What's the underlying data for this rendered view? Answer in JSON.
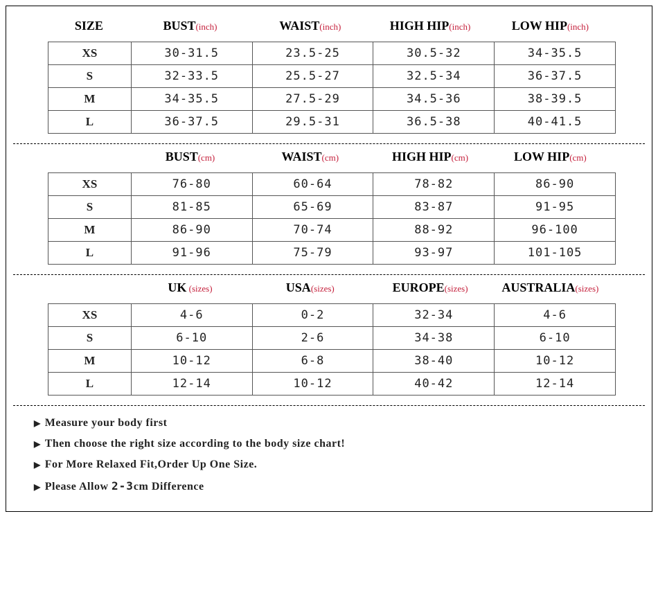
{
  "colors": {
    "unit": "#c41e3a",
    "border": "#555555",
    "text": "#222222",
    "background": "#ffffff"
  },
  "typography": {
    "header_fontsize": 18,
    "data_fontsize": 17,
    "unit_fontsize": 13,
    "note_fontsize": 16
  },
  "sections": [
    {
      "show_size_header": true,
      "size_header": "SIZE",
      "columns": [
        {
          "label": "BUST",
          "unit": "(inch)"
        },
        {
          "label": "WAIST",
          "unit": "(inch)"
        },
        {
          "label": "HIGH HIP",
          "unit": "(inch)"
        },
        {
          "label": "LOW HIP",
          "unit": "(inch)"
        }
      ],
      "rows": [
        {
          "size": "XS",
          "vals": [
            "30-31.5",
            "23.5-25",
            "30.5-32",
            "34-35.5"
          ]
        },
        {
          "size": "S",
          "vals": [
            "32-33.5",
            "25.5-27",
            "32.5-34",
            "36-37.5"
          ]
        },
        {
          "size": "M",
          "vals": [
            "34-35.5",
            "27.5-29",
            "34.5-36",
            "38-39.5"
          ]
        },
        {
          "size": "L",
          "vals": [
            "36-37.5",
            "29.5-31",
            "36.5-38",
            "40-41.5"
          ]
        }
      ]
    },
    {
      "show_size_header": false,
      "columns": [
        {
          "label": "BUST",
          "unit": "(cm)"
        },
        {
          "label": "WAIST",
          "unit": "(cm)"
        },
        {
          "label": "HIGH HIP",
          "unit": "(cm)"
        },
        {
          "label": "LOW HIP",
          "unit": "(cm)"
        }
      ],
      "rows": [
        {
          "size": "XS",
          "vals": [
            "76-80",
            "60-64",
            "78-82",
            "86-90"
          ]
        },
        {
          "size": "S",
          "vals": [
            "81-85",
            "65-69",
            "83-87",
            "91-95"
          ]
        },
        {
          "size": "M",
          "vals": [
            "86-90",
            "70-74",
            "88-92",
            "96-100"
          ]
        },
        {
          "size": "L",
          "vals": [
            "91-96",
            "75-79",
            "93-97",
            "101-105"
          ]
        }
      ]
    },
    {
      "show_size_header": false,
      "columns": [
        {
          "label": "UK",
          "unit": " (sizes)"
        },
        {
          "label": "USA",
          "unit": "(sizes)"
        },
        {
          "label": "EUROPE",
          "unit": "(sizes)"
        },
        {
          "label": "AUSTRALIA",
          "unit": "(sizes)"
        }
      ],
      "rows": [
        {
          "size": "XS",
          "vals": [
            "4-6",
            "0-2",
            "32-34",
            "4-6"
          ]
        },
        {
          "size": "S",
          "vals": [
            "6-10",
            "2-6",
            "34-38",
            "6-10"
          ]
        },
        {
          "size": "M",
          "vals": [
            "10-12",
            "6-8",
            "38-40",
            "10-12"
          ]
        },
        {
          "size": "L",
          "vals": [
            "12-14",
            "10-12",
            "40-42",
            "12-14"
          ]
        }
      ]
    }
  ],
  "notes": [
    {
      "pre": "Measure your body first",
      "mono": "",
      "post": ""
    },
    {
      "pre": "Then choose the right size according to the body size chart!",
      "mono": "",
      "post": ""
    },
    {
      "pre": "For More Relaxed Fit,Order Up One Size.",
      "mono": "",
      "post": ""
    },
    {
      "pre": "Please Allow ",
      "mono": "2-3",
      "post": "cm Difference"
    }
  ]
}
